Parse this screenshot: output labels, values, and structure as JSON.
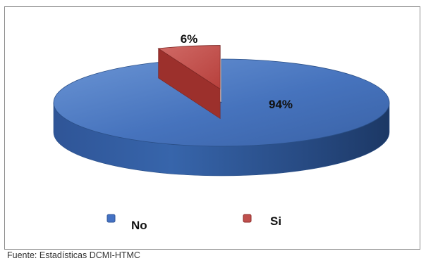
{
  "chart_data": {
    "type": "pie",
    "style": "3d-exploded",
    "categories": [
      "No",
      "Si"
    ],
    "values": [
      94,
      6
    ],
    "data_labels": [
      "94%",
      "6%"
    ],
    "legend": {
      "placement": "bottom",
      "entries": [
        "No",
        "Si"
      ]
    },
    "colors": {
      "No": "#4472C4",
      "Si": "#C0504D"
    }
  },
  "footer": {
    "source": "Fuente:  Estadísticas DCMI-HTMC"
  }
}
